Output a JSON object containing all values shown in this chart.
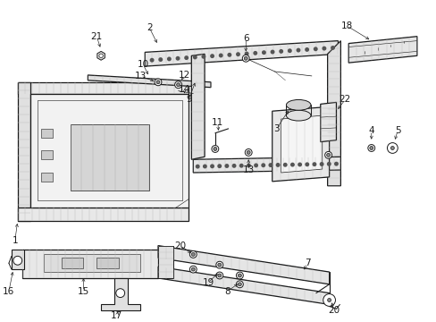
{
  "bg_color": "#ffffff",
  "line_color": "#1a1a1a",
  "text_color": "#1a1a1a",
  "fig_width": 4.89,
  "fig_height": 3.6,
  "dpi": 100
}
